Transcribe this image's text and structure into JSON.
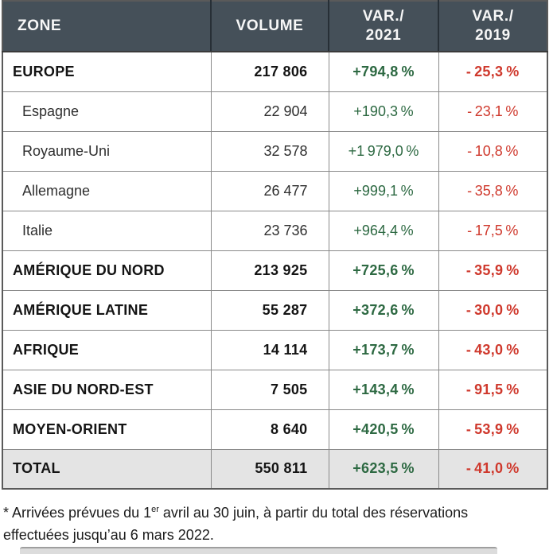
{
  "colors": {
    "header_bg": "#455059",
    "positive": "#2d6942",
    "negative": "#cf382c",
    "total_bg": "#e4e4e4"
  },
  "table": {
    "header": {
      "zone": "ZONE",
      "volume": "VOLUME",
      "var2021": "VAR./\n2021",
      "var2019": "VAR./\n2019"
    },
    "rows": [
      {
        "label": "EUROPE",
        "volume": "217 806",
        "var_2021": "+794,8 %",
        "var_2019": "- 25,3 %",
        "level": "zone"
      },
      {
        "label": "Espagne",
        "volume": "22 904",
        "var_2021": "+190,3 %",
        "var_2019": "- 23,1 %",
        "level": "country"
      },
      {
        "label": "Royaume-Uni",
        "volume": "32 578",
        "var_2021": "+1 979,0 %",
        "var_2019": "- 10,8 %",
        "level": "country"
      },
      {
        "label": "Allemagne",
        "volume": "26 477",
        "var_2021": "+999,1 %",
        "var_2019": "- 35,8 %",
        "level": "country"
      },
      {
        "label": "Italie",
        "volume": "23 736",
        "var_2021": "+964,4 %",
        "var_2019": "- 17,5 %",
        "level": "country"
      },
      {
        "label": "AMÉRIQUE DU NORD",
        "volume": "213 925",
        "var_2021": "+725,6 %",
        "var_2019": "- 35,9 %",
        "level": "zone"
      },
      {
        "label": "AMÉRIQUE LATINE",
        "volume": "55 287",
        "var_2021": "+372,6 %",
        "var_2019": "- 30,0 %",
        "level": "zone"
      },
      {
        "label": "AFRIQUE",
        "volume": "14 114",
        "var_2021": "+173,7 %",
        "var_2019": "- 43,0 %",
        "level": "zone"
      },
      {
        "label": "ASIE DU NORD-EST",
        "volume": "7 505",
        "var_2021": "+143,4 %",
        "var_2019": "- 91,5 %",
        "level": "zone"
      },
      {
        "label": "MOYEN-ORIENT",
        "volume": "8 640",
        "var_2021": "+420,5 %",
        "var_2019": "- 53,9 %",
        "level": "zone"
      },
      {
        "label": "TOTAL",
        "volume": "550 811",
        "var_2021": "+623,5 %",
        "var_2019": "- 41,0 %",
        "level": "total"
      }
    ]
  },
  "footnote": {
    "line1_prefix": "* Arrivées prévues du 1",
    "superscript": "er",
    "line1_suffix": " avril au 30 juin, à partir du total des réservations",
    "line2": "effectuées jusqu’au 6 mars 2022."
  }
}
